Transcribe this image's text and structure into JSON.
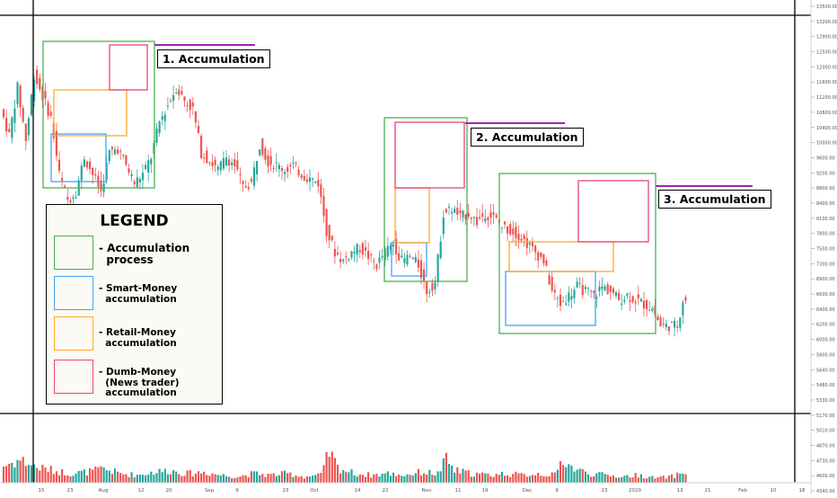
{
  "chart_data": {
    "type": "candlestick",
    "x_tick_labels": [
      "15",
      "23",
      "Aug",
      "12",
      "20",
      "Sep",
      "9",
      "23",
      "Oct",
      "14",
      "22",
      "Nov",
      "11",
      "19",
      "Dec",
      "9",
      "23",
      "2020",
      "13",
      "21",
      "Feb",
      "10",
      "18"
    ],
    "y_tick_labels": [
      "13500.00",
      "13200.00",
      "12900.00",
      "12500.00",
      "12000.00",
      "11600.00",
      "11200.00",
      "10800.00",
      "10400.00",
      "10000.00",
      "9600.00",
      "9200.00",
      "8800.00",
      "8400.00",
      "8100.00",
      "7800.00",
      "7500.00",
      "7200.00",
      "6900.00",
      "6600.00",
      "6400.00",
      "6200.00",
      "6000.00",
      "5800.00",
      "5640.00",
      "5480.00",
      "5330.00",
      "5170.00",
      "5010.00",
      "4870.00",
      "4730.00",
      "4600.00",
      "4340.00"
    ],
    "price_panel_range": [
      6400,
      13500
    ],
    "price_points": [
      [
        0,
        11600
      ],
      [
        3,
        11000
      ],
      [
        6,
        12100
      ],
      [
        9,
        10900
      ],
      [
        12,
        12400
      ],
      [
        15,
        11900
      ],
      [
        18,
        11400
      ],
      [
        21,
        10100
      ],
      [
        24,
        9500
      ],
      [
        27,
        9700
      ],
      [
        30,
        10500
      ],
      [
        33,
        10100
      ],
      [
        36,
        9700
      ],
      [
        39,
        10600
      ],
      [
        42,
        10700
      ],
      [
        45,
        10300
      ],
      [
        48,
        9900
      ],
      [
        51,
        10100
      ],
      [
        54,
        10500
      ],
      [
        57,
        11300
      ],
      [
        60,
        11700
      ],
      [
        63,
        12100
      ],
      [
        66,
        11800
      ],
      [
        69,
        11600
      ],
      [
        72,
        10600
      ],
      [
        75,
        10400
      ],
      [
        78,
        10200
      ],
      [
        81,
        10500
      ],
      [
        84,
        10300
      ],
      [
        87,
        9800
      ],
      [
        90,
        9900
      ],
      [
        93,
        10800
      ],
      [
        96,
        10400
      ],
      [
        99,
        10300
      ],
      [
        102,
        10200
      ],
      [
        105,
        10300
      ],
      [
        108,
        10100
      ],
      [
        111,
        10000
      ],
      [
        114,
        9900
      ],
      [
        117,
        8800
      ],
      [
        120,
        8300
      ],
      [
        123,
        8100
      ],
      [
        126,
        8300
      ],
      [
        129,
        8400
      ],
      [
        132,
        8200
      ],
      [
        135,
        8000
      ],
      [
        138,
        8300
      ],
      [
        141,
        8500
      ],
      [
        144,
        8100
      ],
      [
        147,
        8200
      ],
      [
        150,
        8000
      ],
      [
        153,
        7400
      ],
      [
        156,
        7600
      ],
      [
        159,
        9200
      ],
      [
        162,
        9300
      ],
      [
        165,
        9100
      ],
      [
        168,
        9200
      ],
      [
        171,
        9000
      ],
      [
        174,
        9200
      ],
      [
        177,
        9100
      ],
      [
        180,
        8900
      ],
      [
        183,
        8800
      ],
      [
        186,
        8700
      ],
      [
        189,
        8500
      ],
      [
        192,
        8300
      ],
      [
        195,
        8100
      ],
      [
        198,
        7400
      ],
      [
        201,
        7100
      ],
      [
        204,
        7300
      ],
      [
        207,
        7500
      ],
      [
        210,
        7400
      ],
      [
        213,
        7300
      ],
      [
        216,
        7500
      ],
      [
        219,
        7400
      ],
      [
        222,
        7200
      ],
      [
        225,
        7300
      ],
      [
        228,
        7200
      ],
      [
        231,
        7100
      ],
      [
        234,
        7000
      ],
      [
        237,
        6600
      ],
      [
        240,
        6600
      ],
      [
        243,
        6600
      ],
      [
        245,
        7200
      ]
    ],
    "volume_points": [
      [
        0,
        0.55
      ],
      [
        6,
        0.75
      ],
      [
        12,
        0.5
      ],
      [
        18,
        0.4
      ],
      [
        24,
        0.3
      ],
      [
        30,
        0.35
      ],
      [
        36,
        0.45
      ],
      [
        42,
        0.3
      ],
      [
        48,
        0.25
      ],
      [
        54,
        0.35
      ],
      [
        60,
        0.4
      ],
      [
        66,
        0.3
      ],
      [
        72,
        0.35
      ],
      [
        78,
        0.25
      ],
      [
        84,
        0.2
      ],
      [
        90,
        0.3
      ],
      [
        96,
        0.25
      ],
      [
        102,
        0.3
      ],
      [
        108,
        0.2
      ],
      [
        114,
        0.25
      ],
      [
        117,
        1.0
      ],
      [
        120,
        0.5
      ],
      [
        126,
        0.3
      ],
      [
        132,
        0.25
      ],
      [
        138,
        0.3
      ],
      [
        144,
        0.25
      ],
      [
        150,
        0.35
      ],
      [
        156,
        0.3
      ],
      [
        159,
        0.75
      ],
      [
        162,
        0.4
      ],
      [
        168,
        0.3
      ],
      [
        174,
        0.25
      ],
      [
        180,
        0.3
      ],
      [
        186,
        0.25
      ],
      [
        192,
        0.3
      ],
      [
        198,
        0.25
      ],
      [
        201,
        0.8
      ],
      [
        204,
        0.5
      ],
      [
        210,
        0.3
      ],
      [
        216,
        0.25
      ],
      [
        222,
        0.2
      ],
      [
        228,
        0.25
      ],
      [
        234,
        0.15
      ],
      [
        240,
        0.2
      ],
      [
        245,
        0.35
      ]
    ],
    "annotations": [
      "1. Accumulation",
      "2. Accumulation",
      "3. Accumulation"
    ],
    "grid": false,
    "legend_placement": "bottom-left"
  },
  "legend": {
    "title": "LEGEND",
    "items": [
      {
        "label": "- Accumulation\n  process",
        "color": "#4caf50"
      },
      {
        "label": "- Smart-Money\n  accumulation",
        "color": "#42a5f5"
      },
      {
        "label": "- Retail-Money\n  accumulation",
        "color": "#ffa726"
      },
      {
        "label": "- Dumb-Money\n  (News trader)\n  accumulation",
        "color": "#ec407a"
      }
    ]
  },
  "colors": {
    "up": "#26a69a",
    "down": "#ef5350",
    "accumulation": "#4caf50",
    "smart_money": "#42a5f5",
    "retail_money": "#ffa726",
    "dumb_money": "#ec407a",
    "resistance_line": "#9c27b0"
  }
}
